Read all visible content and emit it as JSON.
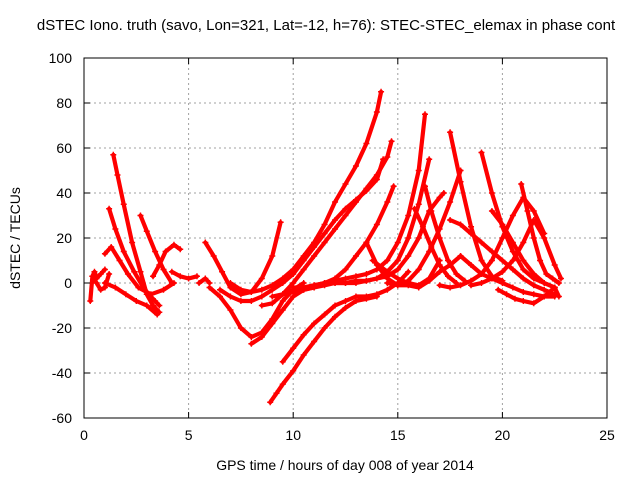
{
  "chart_data": {
    "type": "scatter",
    "title": "dSTEC Iono. truth (savo, Lon=321, Lat=-12, h=76): STEC-STEC_elemax in phase cont",
    "xlabel": "GPS time / hours of day 008 of year 2014",
    "ylabel": "dSTEC  / TECUs",
    "xlim": [
      0,
      25
    ],
    "ylim": [
      -60,
      100
    ],
    "xticks": [
      0,
      5,
      10,
      15,
      20,
      25
    ],
    "yticks": [
      -60,
      -40,
      -20,
      0,
      20,
      40,
      60,
      80,
      100
    ],
    "grid": true,
    "legend": "none",
    "marker": "plus",
    "color": "#ff0000",
    "series": [
      {
        "x": [
          0.3,
          0.4,
          0.5,
          0.6,
          0.8,
          1.0
        ],
        "y": [
          -8,
          3,
          5,
          2,
          4,
          6
        ]
      },
      {
        "x": [
          0.4,
          0.6,
          0.8,
          1.0,
          1.2
        ],
        "y": [
          3,
          0,
          -3,
          -2,
          4
        ]
      },
      {
        "x": [
          1.4,
          1.6,
          1.9,
          2.3,
          2.7,
          3.0,
          3.3,
          3.6
        ],
        "y": [
          57,
          48,
          35,
          18,
          5,
          -5,
          -10,
          -13
        ]
      },
      {
        "x": [
          1.2,
          1.5,
          1.9,
          2.4,
          2.9,
          3.4,
          3.6
        ],
        "y": [
          33,
          24,
          14,
          5,
          -3,
          -8,
          -10
        ]
      },
      {
        "x": [
          1.0,
          1.3,
          1.7,
          2.1,
          2.6,
          3.2,
          3.8,
          4.3
        ],
        "y": [
          13,
          16,
          10,
          4,
          -2,
          -5,
          -3,
          0
        ]
      },
      {
        "x": [
          1.0,
          1.5,
          2.0,
          2.5,
          3.0,
          3.5
        ],
        "y": [
          0,
          -2,
          -5,
          -8,
          -10,
          -14
        ]
      },
      {
        "x": [
          2.7,
          3.0,
          3.4,
          3.8,
          4.2
        ],
        "y": [
          30,
          23,
          14,
          6,
          0
        ]
      },
      {
        "x": [
          3.3,
          3.6,
          3.9,
          4.3,
          4.6
        ],
        "y": [
          3,
          8,
          14,
          17,
          15
        ]
      },
      {
        "x": [
          4.2,
          4.6,
          5.0,
          5.4
        ],
        "y": [
          5,
          3,
          2,
          3
        ]
      },
      {
        "x": [
          5.5,
          5.8,
          6.0
        ],
        "y": [
          0,
          2,
          0
        ]
      },
      {
        "x": [
          5.8,
          6.2,
          6.6,
          7.0,
          7.5,
          8.0,
          8.5,
          9.0,
          9.4
        ],
        "y": [
          18,
          12,
          5,
          -2,
          -5,
          -4,
          2,
          12,
          27
        ]
      },
      {
        "x": [
          6.0,
          6.5,
          7.0,
          7.5,
          8.0,
          8.5,
          9.0,
          9.5,
          10.0,
          10.5
        ],
        "y": [
          -2,
          -6,
          -12,
          -20,
          -24,
          -22,
          -16,
          -8,
          -3,
          0
        ]
      },
      {
        "x": [
          7.0,
          7.5,
          8.0,
          8.5,
          9.0,
          9.5,
          10.0,
          10.5,
          11.0,
          11.5,
          12.0,
          12.5,
          13.0,
          13.5,
          14.0,
          14.2
        ],
        "y": [
          0,
          -3,
          -4,
          -3,
          -1,
          2,
          6,
          12,
          18,
          26,
          36,
          44,
          52,
          62,
          76,
          85
        ]
      },
      {
        "x": [
          6.5,
          7.0,
          7.5,
          8.0,
          8.5,
          9.0,
          9.5,
          10.0,
          10.5,
          11.0,
          11.5,
          12.0,
          12.5,
          13.0,
          13.5,
          14.0,
          14.3
        ],
        "y": [
          -3,
          -6,
          -8,
          -8,
          -6,
          -3,
          0,
          4,
          10,
          16,
          22,
          28,
          33,
          37,
          41,
          46,
          55
        ]
      },
      {
        "x": [
          8.0,
          8.5,
          9.0,
          9.5,
          10.0,
          10.5,
          11.0,
          11.5,
          12.0,
          12.5,
          13.0,
          13.5,
          14.0,
          14.5,
          14.8
        ],
        "y": [
          -27,
          -24,
          -18,
          -12,
          -6,
          -3,
          -2,
          0,
          2,
          6,
          12,
          18,
          26,
          36,
          43
        ]
      },
      {
        "x": [
          8.5,
          9.0,
          9.5,
          10.0,
          10.5,
          11.0,
          11.5,
          12.0,
          12.5,
          13.0,
          13.5,
          14.0,
          14.5,
          14.7
        ],
        "y": [
          -10,
          -9,
          -5,
          0,
          6,
          12,
          18,
          24,
          30,
          36,
          42,
          48,
          56,
          63
        ]
      },
      {
        "x": [
          8.9,
          9.2,
          9.5,
          10.0,
          10.5,
          11.0,
          11.5,
          12.0,
          12.5,
          13.0,
          13.5,
          14.0
        ],
        "y": [
          -53,
          -49,
          -45,
          -39,
          -32,
          -26,
          -20,
          -15,
          -11,
          -8,
          -7,
          -6
        ]
      },
      {
        "x": [
          9.5,
          10.0,
          10.5,
          11.0,
          11.5,
          12.0,
          12.5,
          13.0,
          13.5,
          14.0,
          14.5,
          15.0,
          15.5
        ],
        "y": [
          -35,
          -29,
          -23,
          -18,
          -14,
          -10,
          -8,
          -6,
          -6,
          -5,
          -3,
          0,
          5
        ]
      },
      {
        "x": [
          9.0,
          9.5,
          10.0,
          10.5,
          11.0,
          11.5,
          12.0,
          12.5,
          13.0,
          13.5,
          14.0,
          14.5,
          15.0,
          15.5,
          16.0,
          16.3
        ],
        "y": [
          -6,
          -5,
          -3,
          -2,
          -1,
          0,
          1,
          2,
          3,
          4,
          6,
          10,
          18,
          30,
          50,
          75
        ]
      },
      {
        "x": [
          9.5,
          10.0,
          10.5,
          11.0,
          11.5,
          12.0,
          12.5,
          13.0,
          13.5,
          14.0,
          14.5,
          15.0,
          15.5,
          16.0,
          16.5
        ],
        "y": [
          -5,
          -4,
          -3,
          -2,
          -1,
          0,
          0,
          0,
          1,
          2,
          5,
          10,
          20,
          35,
          55
        ]
      },
      {
        "x": [
          10.0,
          10.5,
          11.0,
          11.5,
          12.0,
          12.5,
          13.0,
          13.5,
          14.0,
          14.5,
          15.0,
          15.5,
          16.0,
          16.5,
          17.0,
          17.2
        ],
        "y": [
          -2,
          -2,
          -1,
          0,
          0,
          0,
          1,
          1,
          2,
          3,
          6,
          12,
          20,
          32,
          38,
          40
        ]
      },
      {
        "x": [
          13.5,
          14.0,
          14.5,
          15.0,
          15.5,
          16.0,
          16.5,
          17.0,
          17.5,
          18.0
        ],
        "y": [
          18,
          8,
          2,
          -1,
          1,
          6,
          14,
          24,
          36,
          50
        ]
      },
      {
        "x": [
          13.8,
          14.5,
          15.0,
          15.5,
          16.0,
          16.5,
          17.0
        ],
        "y": [
          10,
          5,
          2,
          0,
          -1,
          2,
          10
        ]
      },
      {
        "x": [
          14.5,
          15.0,
          15.5,
          16.0,
          16.5,
          17.0,
          17.5,
          18.0
        ],
        "y": [
          0,
          -1,
          -1,
          -2,
          1,
          5,
          8,
          12
        ]
      },
      {
        "x": [
          15.8,
          16.2,
          16.6,
          17.0,
          17.4,
          17.8
        ],
        "y": [
          33,
          25,
          16,
          8,
          3,
          0
        ]
      },
      {
        "x": [
          16.3,
          16.6,
          17.0,
          17.4,
          17.8,
          18.2
        ],
        "y": [
          43,
          32,
          20,
          10,
          4,
          1
        ]
      },
      {
        "x": [
          17.5,
          18.0,
          18.5,
          19.0,
          19.5,
          20.0
        ],
        "y": [
          67,
          45,
          25,
          10,
          3,
          1
        ]
      },
      {
        "x": [
          17.0,
          17.5,
          18.0,
          18.5,
          19.0,
          19.5,
          20.0,
          20.5,
          21.0,
          21.5,
          22.0
        ],
        "y": [
          -1,
          -2,
          -1,
          1,
          4,
          10,
          20,
          30,
          38,
          32,
          22
        ]
      },
      {
        "x": [
          17.5,
          18.0,
          18.5,
          19.0,
          19.5,
          20.0,
          20.5,
          21.0,
          21.5,
          22.0,
          22.5
        ],
        "y": [
          28,
          26,
          22,
          18,
          14,
          10,
          6,
          2,
          -1,
          -3,
          -5
        ]
      },
      {
        "x": [
          18.0,
          18.5,
          19.0,
          19.5,
          20.0,
          20.5,
          21.0,
          21.5,
          22.0,
          22.5
        ],
        "y": [
          12,
          8,
          4,
          2,
          0,
          -2,
          -4,
          -5,
          -6,
          -6
        ]
      },
      {
        "x": [
          18.5,
          19.0,
          19.5,
          20.0,
          20.5,
          21.0,
          21.5,
          22.0,
          22.5,
          22.8
        ],
        "y": [
          -1,
          0,
          2,
          5,
          10,
          18,
          28,
          20,
          8,
          2
        ]
      },
      {
        "x": [
          19.0,
          19.5,
          20.0,
          20.5,
          21.0,
          21.5,
          22.0,
          22.5,
          22.7
        ],
        "y": [
          58,
          40,
          25,
          14,
          6,
          2,
          0,
          -2,
          -6
        ]
      },
      {
        "x": [
          19.5,
          20.0,
          20.5,
          21.0,
          21.5,
          22.0,
          22.5
        ],
        "y": [
          32,
          26,
          18,
          10,
          4,
          0,
          -2
        ]
      },
      {
        "x": [
          20.9,
          21.2,
          21.5,
          21.8,
          22.1,
          22.4,
          22.7
        ],
        "y": [
          44,
          32,
          20,
          10,
          4,
          2,
          0
        ]
      },
      {
        "x": [
          19.8,
          20.2,
          20.6,
          21.0,
          21.5,
          22.0,
          22.5
        ],
        "y": [
          -3,
          -5,
          -7,
          -8,
          -9,
          -6,
          -2
        ]
      }
    ]
  }
}
